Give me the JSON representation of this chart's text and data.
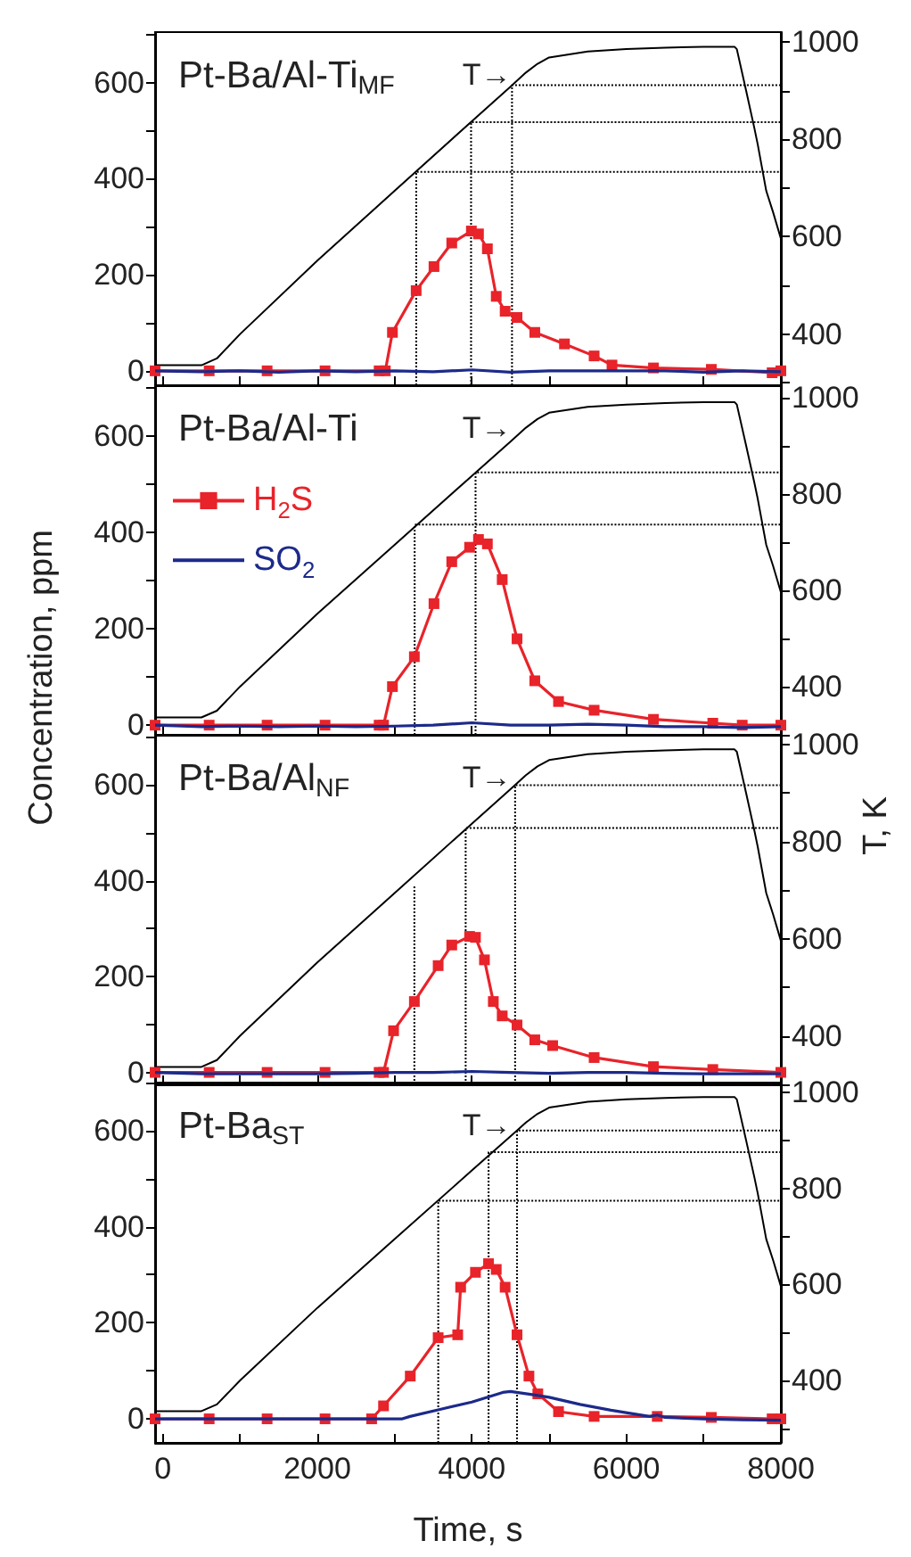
{
  "chart_data": [
    {
      "type": "line",
      "title": "Pt-Ba/Al-Ti$_{MF}$",
      "tick_labels": "y",
      "xlim": [
        -100,
        8000
      ],
      "xticks": [
        0,
        {
          "value": 1000,
          "label": null
        },
        2000,
        {
          "value": 3000,
          "label": null
        },
        4000,
        {
          "value": 5000,
          "label": null
        },
        6000,
        {
          "value": 7000,
          "label": null
        },
        8000
      ],
      "ylim": [
        -30,
        705
      ],
      "yticks": [
        0,
        {
          "value": 100,
          "label": null
        },
        200,
        {
          "value": 300,
          "label": null
        },
        400,
        {
          "value": 500,
          "label": null
        },
        600,
        {
          "value": 700,
          "label": null
        }
      ],
      "y2lim": [
        295,
        1020
      ],
      "y2ticks": [
        {
          "value": 300,
          "label": null
        },
        400,
        {
          "value": 500,
          "label": null
        },
        600,
        {
          "value": 700,
          "label": null
        },
        800,
        {
          "value": 900,
          "label": null
        },
        1000
      ],
      "annotations": [
        "T→"
      ],
      "series": [
        {
          "color": "#e8232a",
          "marker": "square",
          "x": [
            -100,
            600,
            1350,
            2100,
            2800,
            2880,
            2972,
            3279,
            3510,
            3740,
            3994,
            4086,
            4201,
            4316,
            4431,
            4585,
            4815,
            5199,
            5583,
            5814,
            6351,
            7100,
            7887,
            8000
          ],
          "values": [
            0,
            0,
            0,
            0,
            0,
            0,
            80,
            167,
            217,
            266,
            291,
            285,
            254,
            155,
            124,
            111,
            80,
            56,
            31,
            12,
            6,
            3,
            -4,
            0
          ]
        },
        {
          "color": "#1c2a8a",
          "marker": "none",
          "x": [
            -100,
            500,
            1000,
            1500,
            2000,
            2500,
            3000,
            3500,
            4000,
            4500,
            5000,
            5500,
            6000,
            6500,
            7000,
            7500,
            8000
          ],
          "values": [
            0,
            -2,
            0,
            -3,
            0,
            -2,
            0,
            -2,
            2,
            -3,
            0,
            0,
            0,
            0,
            -3,
            0,
            -2
          ]
        },
        {
          "color": "#000000",
          "marker": "none",
          "axis": "y2",
          "x": [
            -100,
            500,
            700,
            1000,
            2000,
            3000,
            4000,
            4500,
            4700,
            4850,
            5000,
            5500,
            6000,
            6500,
            7000,
            7400,
            7430,
            7550,
            7657,
            7700,
            7811,
            7900,
            8000
          ],
          "values": [
            336,
            336,
            350,
            400,
            551,
            694,
            837,
            908,
            937,
            955,
            968,
            980,
            985,
            988,
            990,
            990,
            985,
            900,
            823,
            790,
            694,
            650,
            596
          ]
        },
        {
          "color": "#000000",
          "marker": "none",
          "axis": "y2",
          "line_style": "dotted",
          "x": [
            3280,
            3280,
            8000
          ],
          "values": [
            295,
            733,
            733
          ]
        },
        {
          "color": "#000000",
          "marker": "none",
          "axis": "y2",
          "line_style": "dotted",
          "x": [
            3990,
            3990,
            8000
          ],
          "values": [
            295,
            835,
            835
          ]
        },
        {
          "color": "#000000",
          "marker": "none",
          "axis": "y2",
          "line_style": "dotted",
          "x": [
            4520,
            4520,
            8000
          ],
          "values": [
            295,
            911,
            911
          ]
        }
      ]
    },
    {
      "type": "line",
      "title": "Pt-Ba/Al-Ti",
      "tick_labels": "y",
      "legend": "top left",
      "xlim": [
        -100,
        8000
      ],
      "xticks": [
        0,
        {
          "value": 1000,
          "label": null
        },
        2000,
        {
          "value": 3000,
          "label": null
        },
        4000,
        {
          "value": 5000,
          "label": null
        },
        6000,
        {
          "value": 7000,
          "label": null
        },
        8000
      ],
      "ylim": [
        -20,
        705
      ],
      "yticks": [
        0,
        {
          "value": 100,
          "label": null
        },
        200,
        {
          "value": 300,
          "label": null
        },
        400,
        {
          "value": 500,
          "label": null
        },
        600,
        {
          "value": 700,
          "label": null
        }
      ],
      "y2lim": [
        300,
        1025
      ],
      "y2ticks": [
        {
          "value": 300,
          "label": null
        },
        400,
        {
          "value": 500,
          "label": null
        },
        600,
        {
          "value": 700,
          "label": null
        },
        800,
        {
          "value": 900,
          "label": null
        },
        1000
      ],
      "annotations": [
        "T→"
      ],
      "series": [
        {
          "name": "H$_{2}$S",
          "color": "#e8232a",
          "marker": "square",
          "x": [
            -100,
            600,
            1350,
            2100,
            2800,
            2857,
            2972,
            3256,
            3510,
            3740,
            3971,
            4086,
            4201,
            4393,
            4585,
            4815,
            5122,
            5583,
            6351,
            7119,
            7500,
            8000
          ],
          "values": [
            0,
            0,
            0,
            0,
            0,
            0,
            80,
            142,
            252,
            339,
            369,
            385,
            376,
            302,
            179,
            92,
            49,
            31,
            12,
            4,
            0,
            0
          ]
        },
        {
          "name": "SO$_{2}$",
          "color": "#1c2a8a",
          "marker": "none",
          "x": [
            -100,
            500,
            1000,
            1500,
            2000,
            2500,
            3000,
            3500,
            4000,
            4500,
            5000,
            5500,
            6000,
            6500,
            7000,
            7500,
            8000
          ],
          "values": [
            0,
            -3,
            -2,
            -3,
            -2,
            -3,
            -2,
            0,
            5,
            0,
            0,
            2,
            0,
            -3,
            -3,
            -5,
            -3
          ]
        },
        {
          "color": "#000000",
          "marker": "none",
          "axis": "y2",
          "x": [
            -100,
            500,
            700,
            1000,
            2000,
            3000,
            4000,
            4500,
            4700,
            4850,
            5000,
            5500,
            6000,
            6500,
            7000,
            7400,
            7430,
            7550,
            7657,
            7700,
            7811,
            7900,
            8000
          ],
          "values": [
            336,
            336,
            350,
            400,
            551,
            694,
            837,
            908,
            937,
            955,
            968,
            980,
            985,
            988,
            990,
            990,
            985,
            900,
            823,
            790,
            694,
            650,
            596
          ]
        },
        {
          "color": "#000000",
          "marker": "none",
          "axis": "y2",
          "line_style": "dotted",
          "x": [
            3260,
            3260,
            8000
          ],
          "values": [
            300,
            736,
            736
          ]
        },
        {
          "color": "#000000",
          "marker": "none",
          "axis": "y2",
          "line_style": "dotted",
          "x": [
            4048,
            4048,
            8000
          ],
          "values": [
            300,
            844,
            844
          ]
        }
      ]
    },
    {
      "type": "line",
      "title": "Pt-Ba/Al$_{NF}$",
      "ylabel": "Concentration, ppm",
      "y2label": "T, K",
      "tick_labels": "y",
      "xlim": [
        -100,
        8000
      ],
      "xticks": [
        0,
        {
          "value": 1000,
          "label": null
        },
        2000,
        {
          "value": 3000,
          "label": null
        },
        4000,
        {
          "value": 5000,
          "label": null
        },
        6000,
        {
          "value": 7000,
          "label": null
        },
        8000
      ],
      "ylim": [
        -25,
        705
      ],
      "yticks": [
        0,
        {
          "value": 100,
          "label": null
        },
        200,
        {
          "value": 300,
          "label": null
        },
        400,
        {
          "value": 500,
          "label": null
        },
        600,
        {
          "value": 700,
          "label": null
        }
      ],
      "y2lim": [
        300,
        1020
      ],
      "y2ticks": [
        {
          "value": 300,
          "label": null
        },
        400,
        {
          "value": 500,
          "label": null
        },
        600,
        {
          "value": 700,
          "label": null
        },
        800,
        {
          "value": 900,
          "label": null
        },
        1000
      ],
      "annotations": [
        "T→"
      ],
      "series": [
        {
          "color": "#e8232a",
          "marker": "square",
          "x": [
            -100,
            600,
            1350,
            2100,
            2800,
            2857,
            2987,
            3256,
            3564,
            3740,
            3971,
            4047,
            4163,
            4278,
            4393,
            4585,
            4815,
            5046,
            5583,
            6351,
            7119,
            8000
          ],
          "values": [
            0,
            0,
            0,
            0,
            0,
            0,
            87,
            148,
            223,
            266,
            284,
            282,
            235,
            148,
            118,
            99,
            68,
            56,
            31,
            12,
            6,
            0
          ]
        },
        {
          "color": "#1c2a8a",
          "marker": "none",
          "x": [
            -100,
            500,
            1000,
            1500,
            2000,
            2500,
            3000,
            3500,
            4000,
            4500,
            5000,
            5500,
            6000,
            6500,
            7000,
            7500,
            8000
          ],
          "values": [
            0,
            -3,
            -3,
            -3,
            -3,
            -2,
            0,
            0,
            2,
            0,
            -2,
            0,
            0,
            -2,
            -3,
            -3,
            -3
          ]
        },
        {
          "color": "#000000",
          "marker": "none",
          "axis": "y2",
          "x": [
            -100,
            500,
            700,
            1000,
            2000,
            3000,
            4000,
            4500,
            4700,
            4850,
            5000,
            5500,
            6000,
            6500,
            7000,
            7400,
            7430,
            7550,
            7657,
            7700,
            7811,
            7900,
            8000
          ],
          "values": [
            336,
            336,
            350,
            400,
            551,
            694,
            837,
            908,
            937,
            955,
            968,
            980,
            985,
            988,
            990,
            990,
            985,
            900,
            823,
            790,
            694,
            650,
            596
          ]
        },
        {
          "color": "#000000",
          "marker": "none",
          "axis": "y2",
          "line_style": "dotted",
          "x": [
            3256,
            3256
          ],
          "values": [
            300,
            709
          ]
        },
        {
          "color": "#000000",
          "marker": "none",
          "axis": "y2",
          "line_style": "dotted",
          "x": [
            3920,
            3920,
            8000
          ],
          "values": [
            300,
            828,
            828
          ]
        },
        {
          "color": "#000000",
          "marker": "none",
          "axis": "y2",
          "line_style": "dotted",
          "x": [
            4560,
            4560,
            8000
          ],
          "values": [
            300,
            916,
            916
          ]
        }
      ]
    },
    {
      "type": "line",
      "title": "Pt-Ba$_{ST}$",
      "xlabel": "Time, s",
      "xlim": [
        -100,
        8000
      ],
      "xticks": [
        0,
        {
          "value": 1000,
          "label": null
        },
        2000,
        {
          "value": 3000,
          "label": null
        },
        4000,
        {
          "value": 5000,
          "label": null
        },
        6000,
        {
          "value": 7000,
          "label": null
        },
        8000
      ],
      "ylim": [
        -50,
        700
      ],
      "yticks": [
        0,
        {
          "value": 100,
          "label": null
        },
        200,
        {
          "value": 300,
          "label": null
        },
        400,
        {
          "value": 500,
          "label": null
        },
        600,
        {
          "value": 700,
          "label": null
        }
      ],
      "y2lim": [
        270,
        1020
      ],
      "y2ticks": [
        {
          "value": 300,
          "label": null
        },
        400,
        {
          "value": 500,
          "label": null
        },
        600,
        {
          "value": 700,
          "label": null
        },
        800,
        {
          "value": 900,
          "label": null
        },
        1000
      ],
      "annotations": [
        "T→"
      ],
      "series": [
        {
          "color": "#e8232a",
          "marker": "square",
          "x": [
            -100,
            600,
            1350,
            2100,
            2703,
            2857,
            3203,
            3564,
            3817,
            3855,
            4047,
            4216,
            4316,
            4431,
            4585,
            4739,
            4854,
            5122,
            5583,
            6400,
            7100,
            7887,
            8000
          ],
          "values": [
            0,
            0,
            0,
            0,
            0,
            27,
            89,
            169,
            175,
            274,
            305,
            323,
            311,
            274,
            175,
            89,
            52,
            15,
            5,
            5,
            3,
            0,
            0
          ]
        },
        {
          "color": "#1c2a8a",
          "marker": "none",
          "x": [
            -100,
            1000,
            2000,
            3100,
            3200,
            3600,
            4000,
            4400,
            4500,
            4800,
            5000,
            5400,
            5800,
            6300,
            6400,
            6500,
            7000,
            7500,
            8000
          ],
          "values": [
            0,
            0,
            0,
            0,
            5,
            20,
            35,
            55,
            57,
            50,
            45,
            30,
            18,
            5,
            8,
            3,
            0,
            -2,
            -3
          ]
        },
        {
          "color": "#000000",
          "marker": "none",
          "axis": "y2",
          "x": [
            -100,
            500,
            700,
            1000,
            2000,
            3000,
            4000,
            4500,
            4700,
            4850,
            5000,
            5500,
            6000,
            6500,
            7000,
            7400,
            7430,
            7550,
            7657,
            7700,
            7811,
            7900,
            8000
          ],
          "values": [
            336,
            336,
            350,
            400,
            551,
            694,
            837,
            908,
            937,
            955,
            968,
            980,
            985,
            988,
            990,
            990,
            985,
            900,
            823,
            790,
            694,
            650,
            596
          ]
        },
        {
          "color": "#000000",
          "marker": "none",
          "axis": "y2",
          "line_style": "dotted",
          "x": [
            3565,
            3565,
            8000
          ],
          "values": [
            270,
            774,
            774
          ]
        },
        {
          "color": "#000000",
          "marker": "none",
          "axis": "y2",
          "line_style": "dotted",
          "x": [
            4217,
            4217,
            8000
          ],
          "values": [
            270,
            875,
            875
          ]
        },
        {
          "color": "#000000",
          "marker": "none",
          "axis": "y2",
          "line_style": "dotted",
          "x": [
            4585,
            4585,
            8000
          ],
          "values": [
            270,
            920,
            920
          ]
        }
      ]
    }
  ]
}
